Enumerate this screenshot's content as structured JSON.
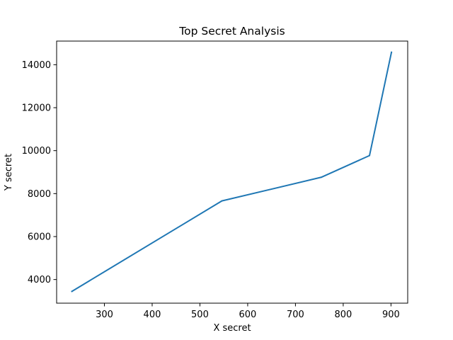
{
  "chart_data": {
    "type": "line",
    "title": "Top Secret Analysis",
    "xlabel": "X secret",
    "ylabel": "Y secret",
    "xlim": [
      200,
      935
    ],
    "ylim": [
      2900,
      15100
    ],
    "xticks": [
      300,
      400,
      500,
      600,
      700,
      800,
      900
    ],
    "yticks": [
      4000,
      6000,
      8000,
      10000,
      12000,
      14000
    ],
    "grid": false,
    "series": [
      {
        "color": "#1f77b4",
        "x": [
          232,
          546,
          754,
          855,
          901
        ],
        "y": [
          3450,
          7660,
          8760,
          9770,
          14580
        ]
      }
    ]
  }
}
